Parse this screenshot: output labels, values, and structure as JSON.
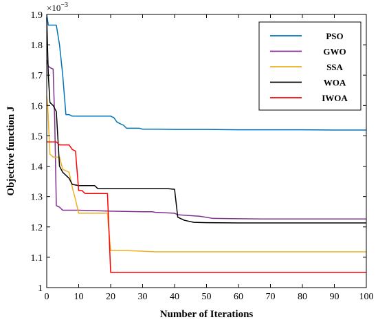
{
  "chart_data": {
    "type": "line",
    "title": "",
    "xlabel": "Number of Iterations",
    "ylabel": "Objective function J",
    "xlim": [
      0,
      100
    ],
    "ylim": [
      1.0,
      1.9
    ],
    "xticks": [
      "0",
      "10",
      "20",
      "30",
      "40",
      "50",
      "60",
      "70",
      "80",
      "90",
      "100"
    ],
    "yticks": [
      "1",
      "1.1",
      "1.2",
      "1.3",
      "1.4",
      "1.5",
      "1.6",
      "1.7",
      "1.8",
      "1.9"
    ],
    "y_exponent_label": "×10",
    "y_exponent_power": "−3",
    "grid": false,
    "legend_position": "top-right",
    "series": [
      {
        "name": "PSO",
        "color": "#0072BD",
        "x": [
          0,
          0.5,
          1,
          3,
          4,
          5,
          6,
          7,
          8,
          9,
          10,
          15,
          20,
          21,
          22,
          23,
          24,
          25,
          27,
          29,
          30,
          35,
          40,
          50,
          60,
          70,
          80,
          90,
          100
        ],
        "y": [
          1.9,
          1.865,
          1.865,
          1.865,
          1.8,
          1.7,
          1.57,
          1.57,
          1.565,
          1.565,
          1.565,
          1.565,
          1.565,
          1.56,
          1.545,
          1.54,
          1.535,
          1.525,
          1.525,
          1.525,
          1.522,
          1.522,
          1.521,
          1.521,
          1.52,
          1.52,
          1.52,
          1.519,
          1.519
        ]
      },
      {
        "name": "GWO",
        "color": "#7E2F8E",
        "x": [
          0,
          0.5,
          1,
          2,
          2.5,
          3,
          4,
          5,
          10,
          20,
          30,
          33,
          34,
          40,
          41,
          48,
          52,
          60,
          70,
          80,
          90,
          100
        ],
        "y": [
          1.75,
          1.73,
          1.725,
          1.72,
          1.55,
          1.27,
          1.265,
          1.255,
          1.255,
          1.252,
          1.25,
          1.25,
          1.248,
          1.245,
          1.24,
          1.235,
          1.228,
          1.227,
          1.226,
          1.226,
          1.226,
          1.226
        ]
      },
      {
        "name": "SSA",
        "color": "#EDB120",
        "x": [
          0,
          0.3,
          1,
          2,
          4,
          5,
          6,
          7,
          8,
          9,
          10,
          12,
          19,
          19.5,
          20,
          25,
          30,
          34,
          40,
          60,
          80,
          100
        ],
        "y": [
          1.63,
          1.6,
          1.44,
          1.43,
          1.43,
          1.39,
          1.385,
          1.38,
          1.33,
          1.29,
          1.245,
          1.245,
          1.245,
          1.18,
          1.122,
          1.122,
          1.12,
          1.118,
          1.118,
          1.118,
          1.118,
          1.118
        ]
      },
      {
        "name": "WOA",
        "color": "#000000",
        "x": [
          0,
          0.5,
          1,
          2,
          3,
          4,
          5,
          6,
          7,
          8,
          9,
          10,
          15,
          16,
          20,
          30,
          35,
          38,
          40,
          41,
          43,
          46,
          50,
          60,
          70,
          80,
          90,
          100
        ],
        "y": [
          1.89,
          1.7,
          1.61,
          1.6,
          1.58,
          1.4,
          1.38,
          1.37,
          1.36,
          1.34,
          1.338,
          1.336,
          1.336,
          1.326,
          1.326,
          1.326,
          1.326,
          1.326,
          1.324,
          1.232,
          1.222,
          1.215,
          1.214,
          1.213,
          1.213,
          1.213,
          1.213,
          1.213
        ]
      },
      {
        "name": "IWOA",
        "color": "#FF0000",
        "x": [
          0,
          3,
          4,
          5,
          7,
          8,
          9,
          10,
          11,
          12,
          15,
          18,
          19,
          19.5,
          20,
          30,
          40,
          50,
          60,
          70,
          80,
          90,
          100
        ],
        "y": [
          1.48,
          1.48,
          1.47,
          1.47,
          1.47,
          1.455,
          1.45,
          1.32,
          1.32,
          1.31,
          1.31,
          1.31,
          1.31,
          1.18,
          1.05,
          1.05,
          1.05,
          1.05,
          1.05,
          1.05,
          1.05,
          1.05,
          1.05
        ]
      }
    ]
  }
}
